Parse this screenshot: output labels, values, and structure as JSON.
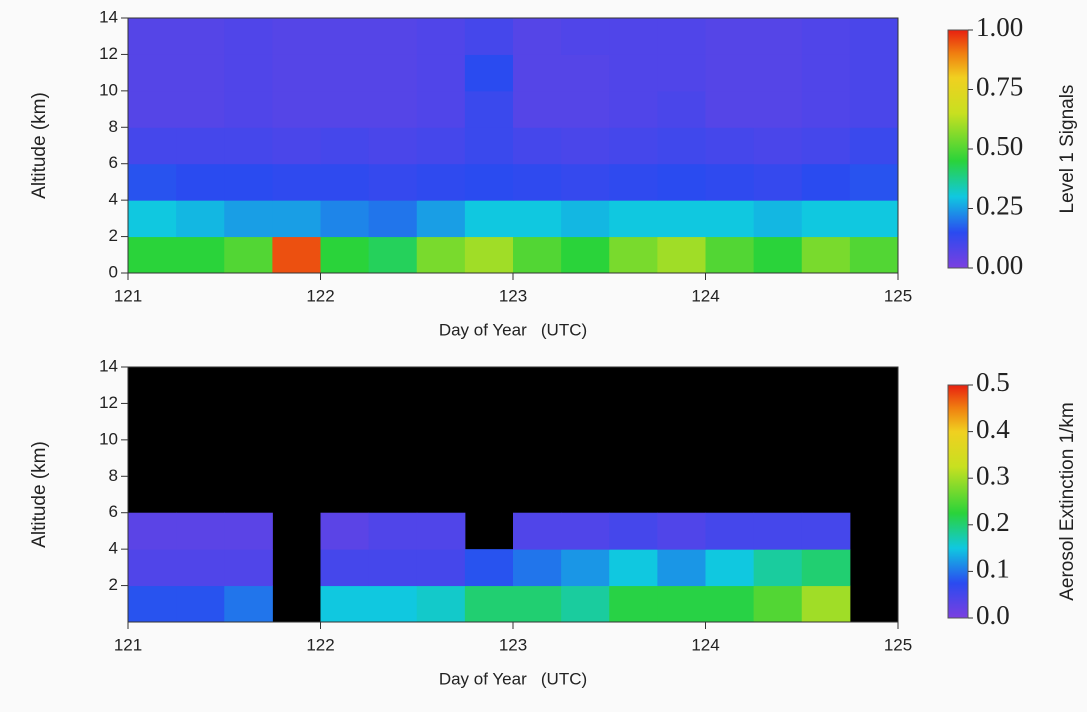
{
  "chart_data": [
    {
      "type": "heatmap",
      "xlabel": "Day of Year   (UTC)",
      "ylabel": "Altitude (km)",
      "colorbar_label": "Level 1 Signals",
      "x_bins": [
        121,
        121.25,
        121.5,
        121.75,
        122,
        122.25,
        122.5,
        122.75,
        123,
        123.25,
        123.5,
        123.75,
        124,
        124.25,
        124.5,
        124.75,
        125
      ],
      "y_bins": [
        0,
        2,
        4,
        6,
        8,
        10,
        12,
        14
      ],
      "values": [
        [
          0.45,
          0.45,
          0.5,
          0.95,
          0.45,
          0.42,
          0.55,
          0.6,
          0.5,
          0.45,
          0.55,
          0.6,
          0.5,
          0.45,
          0.55,
          0.5
        ],
        [
          0.3,
          0.28,
          0.25,
          0.25,
          0.22,
          0.2,
          0.25,
          0.3,
          0.3,
          0.28,
          0.3,
          0.3,
          0.3,
          0.28,
          0.3,
          0.3
        ],
        [
          0.16,
          0.15,
          0.15,
          0.14,
          0.14,
          0.13,
          0.14,
          0.15,
          0.14,
          0.13,
          0.14,
          0.15,
          0.14,
          0.13,
          0.15,
          0.16
        ],
        [
          0.1,
          0.1,
          0.1,
          0.09,
          0.1,
          0.09,
          0.1,
          0.12,
          0.1,
          0.09,
          0.1,
          0.11,
          0.1,
          0.09,
          0.1,
          0.12
        ],
        [
          0.07,
          0.07,
          0.08,
          0.07,
          0.07,
          0.07,
          0.08,
          0.12,
          0.07,
          0.07,
          0.08,
          0.09,
          0.07,
          0.07,
          0.08,
          0.09
        ],
        [
          0.07,
          0.07,
          0.08,
          0.07,
          0.07,
          0.07,
          0.08,
          0.15,
          0.07,
          0.07,
          0.08,
          0.08,
          0.07,
          0.07,
          0.08,
          0.09
        ],
        [
          0.07,
          0.07,
          0.08,
          0.07,
          0.07,
          0.07,
          0.08,
          0.1,
          0.07,
          0.08,
          0.08,
          0.08,
          0.07,
          0.07,
          0.08,
          0.09
        ]
      ],
      "xlim": [
        121,
        125
      ],
      "ylim": [
        0,
        14
      ],
      "xticks": [
        121,
        122,
        123,
        124,
        125
      ],
      "yticks": [
        0,
        2,
        4,
        6,
        8,
        10,
        12,
        14
      ],
      "zlim": [
        0,
        1
      ],
      "zticks": [
        {
          "value": 0,
          "label": "0.00"
        },
        0.25,
        {
          "value": 0.5,
          "label": "0.50"
        },
        0.75,
        {
          "value": 1,
          "label": "1.00"
        }
      ]
    },
    {
      "type": "heatmap",
      "xlabel": "Day of Year   (UTC)",
      "ylabel": "Altitude (km)",
      "colorbar_label": "Aerosol Extinction 1/km",
      "x_bins": [
        121,
        121.25,
        121.5,
        121.75,
        122,
        122.25,
        122.5,
        122.75,
        123,
        123.25,
        123.5,
        123.75,
        124,
        124.25,
        124.5,
        124.75,
        125
      ],
      "y_bins": [
        0,
        2,
        4,
        6,
        8,
        10,
        12,
        14
      ],
      "values": [
        [
          0.08,
          0.08,
          0.1,
          null,
          0.15,
          0.15,
          0.16,
          0.2,
          0.2,
          0.18,
          0.22,
          0.22,
          0.22,
          0.25,
          0.3,
          null
        ],
        [
          0.04,
          0.04,
          0.04,
          null,
          0.05,
          0.05,
          0.05,
          0.08,
          0.1,
          0.12,
          0.15,
          0.12,
          0.15,
          0.18,
          0.2,
          null
        ],
        [
          0.03,
          0.03,
          0.03,
          null,
          0.03,
          0.04,
          0.04,
          null,
          0.04,
          0.04,
          0.05,
          0.04,
          0.05,
          0.05,
          0.05,
          null
        ],
        [
          null,
          null,
          null,
          null,
          null,
          null,
          null,
          null,
          null,
          null,
          null,
          null,
          null,
          null,
          null,
          null
        ],
        [
          null,
          null,
          null,
          null,
          null,
          null,
          null,
          null,
          null,
          null,
          null,
          null,
          null,
          null,
          null,
          null
        ],
        [
          null,
          null,
          null,
          null,
          null,
          null,
          null,
          null,
          null,
          null,
          null,
          null,
          null,
          null,
          null,
          null
        ],
        [
          null,
          null,
          null,
          null,
          null,
          null,
          null,
          null,
          null,
          null,
          null,
          null,
          null,
          null,
          null,
          null
        ]
      ],
      "xlim": [
        121,
        125
      ],
      "ylim": [
        0,
        14
      ],
      "xticks": [
        121,
        122,
        123,
        124,
        125
      ],
      "yticks": [
        2,
        4,
        6,
        8,
        10,
        12,
        14
      ],
      "zlim": [
        0,
        0.5
      ],
      "zticks": [
        {
          "value": 0,
          "label": "0.0"
        },
        0.1,
        0.2,
        0.3,
        0.4,
        0.5
      ]
    }
  ]
}
